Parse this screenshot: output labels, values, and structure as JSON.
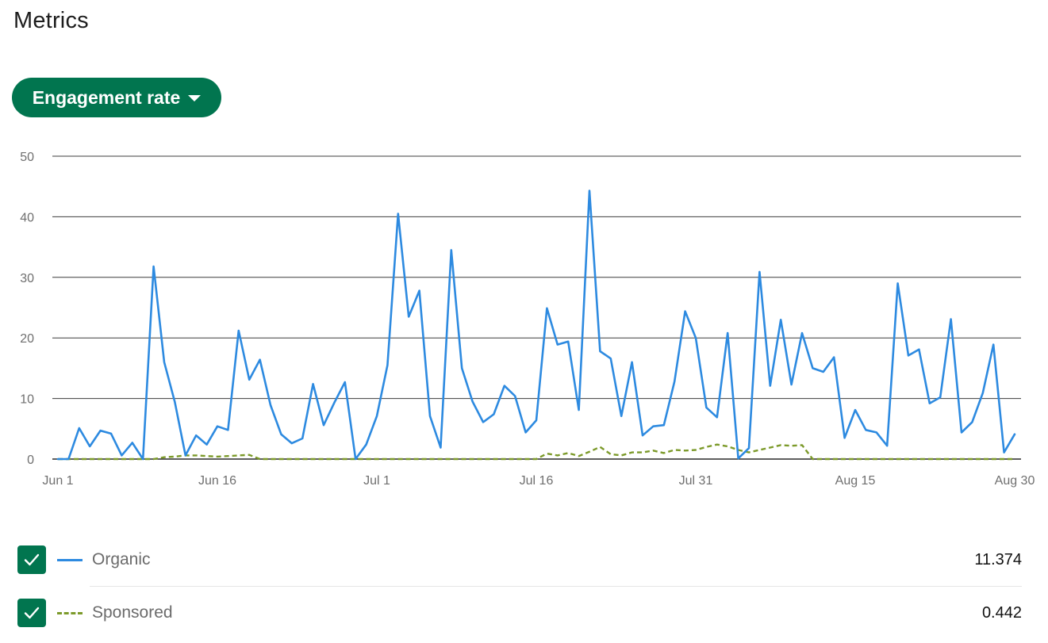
{
  "page": {
    "title": "Metrics"
  },
  "metric_dropdown": {
    "label": "Engagement rate"
  },
  "colors": {
    "brand": "#01754f",
    "organic": "#2d8ae0",
    "sponsored": "#7c9a2a",
    "gridline": "#3c3c3c",
    "tick_text": "#6f6f6f"
  },
  "legend": [
    {
      "name": "Organic",
      "value": "11.374",
      "checked": true
    },
    {
      "name": "Sponsored",
      "value": "0.442",
      "checked": true
    }
  ],
  "chart_data": {
    "type": "line",
    "title": "",
    "xlabel": "",
    "ylabel": "",
    "ylim": [
      0,
      50
    ],
    "yticks": [
      "0",
      "10",
      "20",
      "30",
      "40",
      "50"
    ],
    "xticks": [
      {
        "label": "Jun 1",
        "day": 1
      },
      {
        "label": "Jun 16",
        "day": 16
      },
      {
        "label": "Jul 1",
        "day": 31
      },
      {
        "label": "Jul 16",
        "day": 46
      },
      {
        "label": "Jul 31",
        "day": 61
      },
      {
        "label": "Aug 15",
        "day": 76
      },
      {
        "label": "Aug 30",
        "day": 91
      }
    ],
    "grid": true,
    "series": [
      {
        "name": "Organic",
        "style": "solid",
        "values": [
          0,
          0,
          5.1,
          2.1,
          4.7,
          4.2,
          0.6,
          2.7,
          0,
          31.8,
          16,
          9.4,
          0.6,
          3.9,
          2.4,
          5.4,
          4.8,
          21.2,
          13.1,
          16.4,
          8.9,
          4.1,
          2.6,
          3.4,
          12.4,
          5.6,
          9.3,
          12.7,
          0,
          2.4,
          7.1,
          15.5,
          40.5,
          23.5,
          27.8,
          7.1,
          1.9,
          34.5,
          15,
          9.5,
          6.1,
          7.4,
          12.1,
          10.4,
          4.4,
          6.4,
          24.9,
          18.9,
          19.4,
          8.1,
          44.3,
          17.8,
          16.6,
          7.1,
          16,
          3.9,
          5.4,
          5.6,
          12.8,
          24.4,
          20,
          8.5,
          6.9,
          20.8,
          0.1,
          1.8,
          30.9,
          12.1,
          23,
          12.3,
          20.8,
          15,
          14.4,
          16.8,
          3.5,
          8.1,
          4.8,
          4.4,
          2.2,
          29,
          17.1,
          18.1,
          9.2,
          10.2,
          23.1,
          4.4,
          6.1,
          10.9,
          18.9,
          1.1,
          4.1
        ]
      },
      {
        "name": "Sponsored",
        "style": "dashed",
        "values": [
          0,
          0,
          0,
          0,
          0,
          0,
          0,
          0,
          0,
          0,
          0.3,
          0.4,
          0.6,
          0.6,
          0.5,
          0.4,
          0.5,
          0.6,
          0.7,
          0,
          0,
          0,
          0,
          0,
          0,
          0,
          0,
          0,
          0,
          0,
          0,
          0,
          0,
          0,
          0,
          0,
          0,
          0,
          0,
          0,
          0,
          0,
          0,
          0,
          0,
          0,
          0.9,
          0.6,
          1,
          0.5,
          1.2,
          2,
          0.8,
          0.6,
          1.1,
          1.1,
          1.4,
          1,
          1.5,
          1.4,
          1.5,
          2,
          2.4,
          2.1,
          1.5,
          1.1,
          1.5,
          1.9,
          2.3,
          2.2,
          2.3,
          0,
          0,
          0,
          0,
          0,
          0,
          0,
          0,
          0,
          0,
          0,
          0,
          0,
          0,
          0,
          0,
          0,
          0,
          0,
          0
        ]
      }
    ]
  }
}
